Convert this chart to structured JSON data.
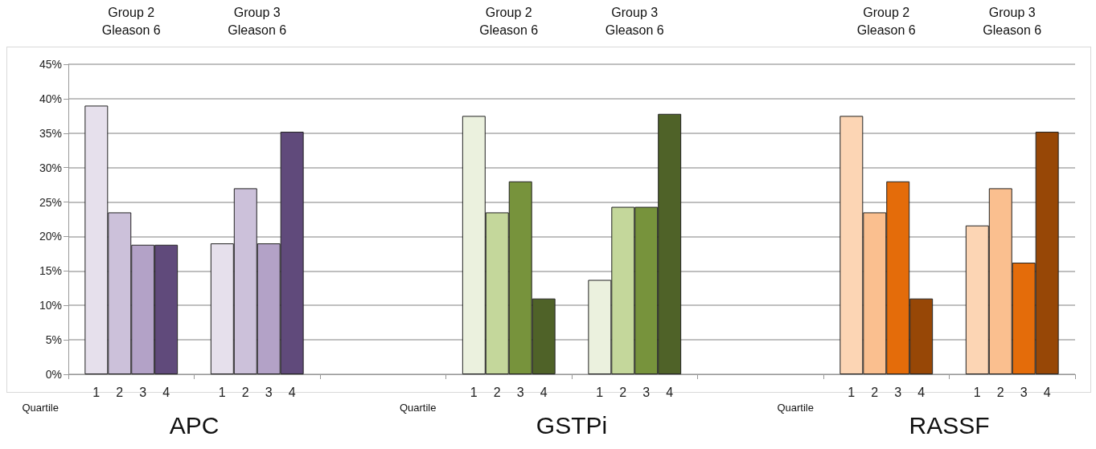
{
  "chart_data": {
    "type": "bar",
    "categories": [
      null,
      null,
      null,
      null,
      null,
      null,
      null,
      null
    ],
    "series": [
      {
        "name": "1",
        "values": [
          39,
          19,
          null,
          37.5,
          13.7,
          null,
          37.5,
          21.6
        ],
        "colors": [
          "#e6e0ec",
          "#e6e0ec",
          null,
          "#ebf1de",
          "#ebf1de",
          null,
          "#fcd5b4",
          "#fcd5b4"
        ]
      },
      {
        "name": "2",
        "values": [
          23.5,
          27,
          null,
          23.5,
          24.3,
          null,
          23.5,
          27
        ],
        "colors": [
          "#ccc1da",
          "#ccc1da",
          null,
          "#c4d79b",
          "#c4d79b",
          null,
          "#fabf8f",
          "#fabf8f"
        ]
      },
      {
        "name": "3",
        "values": [
          18.8,
          19,
          null,
          28,
          24.3,
          null,
          28,
          16.2
        ],
        "colors": [
          "#b3a2c7",
          "#b3a2c7",
          null,
          "#77933c",
          "#77933c",
          null,
          "#e46c0a",
          "#e46c0a"
        ]
      },
      {
        "name": "4",
        "values": [
          18.8,
          35.2,
          null,
          11,
          37.8,
          null,
          11,
          35.2
        ],
        "colors": [
          "#604a7b",
          "#604a7b",
          null,
          "#4f6228",
          "#4f6228",
          null,
          "#974706",
          "#974706"
        ]
      }
    ],
    "ylim": [
      0,
      45
    ],
    "yticks": [
      {
        "value": 0,
        "label": "0%"
      },
      {
        "value": 5,
        "label": "5%"
      },
      {
        "value": 10,
        "label": "10%"
      },
      {
        "value": 15,
        "label": "15%"
      },
      {
        "value": 20,
        "label": "20%"
      },
      {
        "value": 25,
        "label": "25%"
      },
      {
        "value": 30,
        "label": "30%"
      },
      {
        "value": 35,
        "label": "35%"
      },
      {
        "value": 40,
        "label": "40%"
      },
      {
        "value": 45,
        "label": "45%"
      }
    ],
    "grid": "y",
    "annotations": [
      "Group 2\nGleason 6",
      "Group 3\nGleason 6",
      "Group 2\nGleason 6",
      "Group 3\nGleason 6",
      "Group 2\nGleason 6",
      "Group 3\nGleason 6",
      "Quartile",
      "Quartile",
      "Quartile",
      "APC",
      "GSTPi",
      "RASSF"
    ]
  }
}
